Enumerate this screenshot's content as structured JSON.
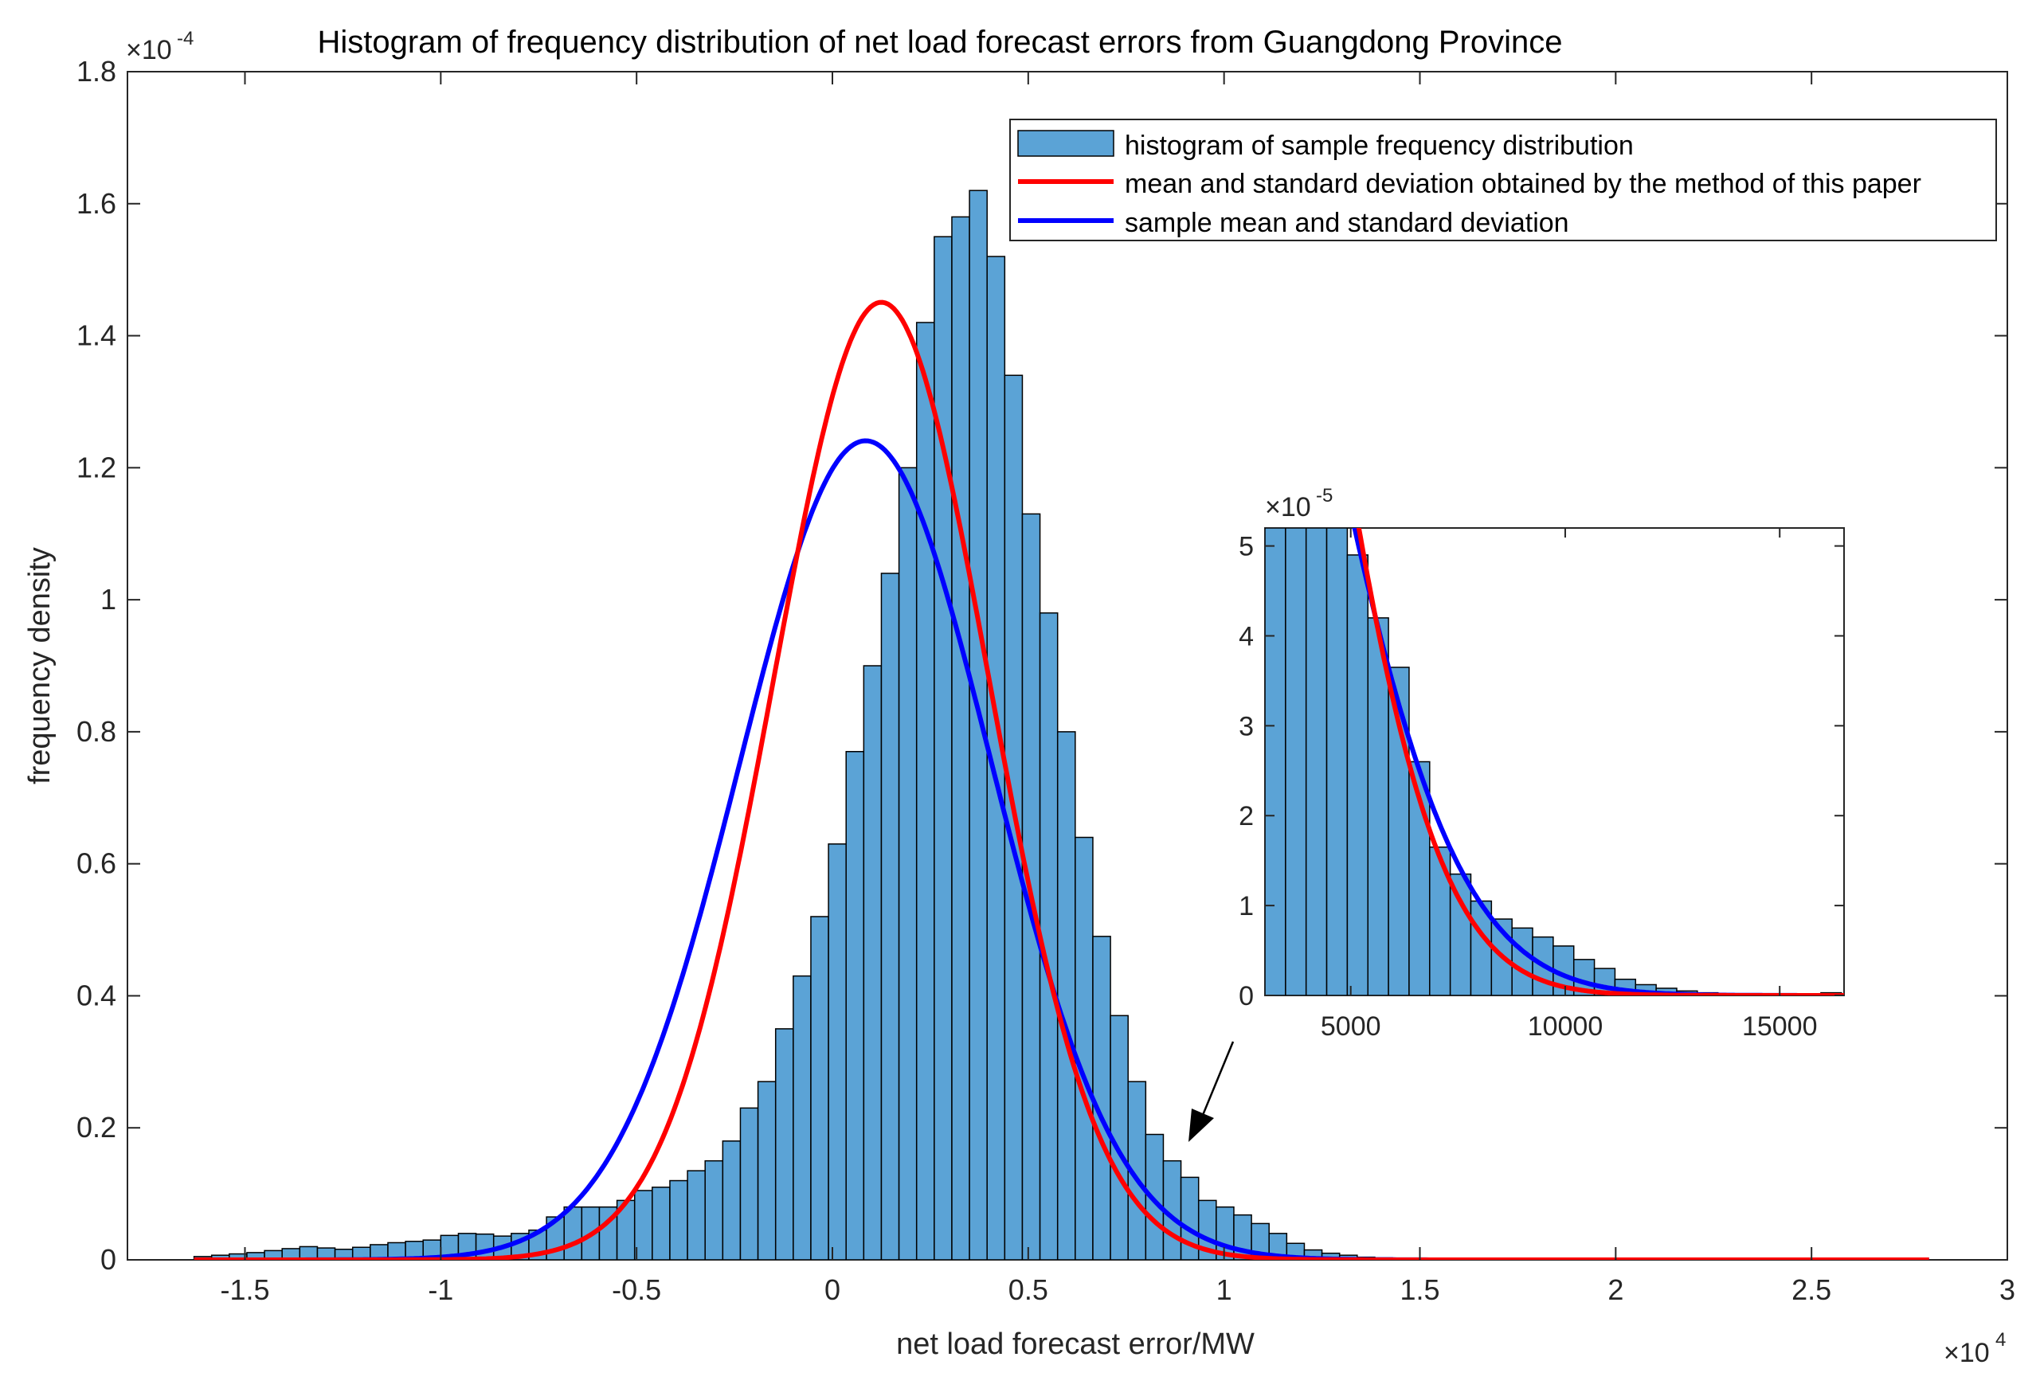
{
  "chart_data": {
    "type": "bar",
    "title": "Histogram of frequency distribution of net load forecast errors from Guangdong Province",
    "xlabel": "net load forecast error/MW",
    "ylabel": "frequency density",
    "x_exponent": {
      "base": "×10",
      "power": "4"
    },
    "y_exponent": {
      "base": "×10",
      "power": "-4"
    },
    "xlim": [
      -18000,
      30000
    ],
    "ylim": [
      0,
      0.00018
    ],
    "xticks": [
      -15000,
      -10000,
      -5000,
      0,
      5000,
      10000,
      15000,
      20000,
      25000,
      30000
    ],
    "xtick_labels": [
      "-1.5",
      "-1",
      "-0.5",
      "0",
      "0.5",
      "1",
      "1.5",
      "2",
      "2.5",
      "3"
    ],
    "yticks": [
      0,
      2e-05,
      4e-05,
      6e-05,
      8e-05,
      0.0001,
      0.00012,
      0.00014,
      0.00016,
      0.00018
    ],
    "ytick_labels": [
      "0",
      "0.2",
      "0.4",
      "0.6",
      "0.8",
      "1",
      "1.2",
      "1.4",
      "1.6",
      "1.8"
    ],
    "grid": false,
    "bin_edges_start": -16300,
    "bin_width": 450,
    "histogram": [
      5e-07,
      7e-07,
      9e-07,
      1.1e-06,
      1.4e-06,
      1.7e-06,
      2e-06,
      1.8e-06,
      1.6e-06,
      1.9e-06,
      2.3e-06,
      2.6e-06,
      2.8e-06,
      3e-06,
      3.7e-06,
      4e-06,
      3.9e-06,
      3.6e-06,
      4e-06,
      4.5e-06,
      6.5e-06,
      8e-06,
      8e-06,
      8e-06,
      9e-06,
      1.05e-05,
      1.1e-05,
      1.2e-05,
      1.35e-05,
      1.5e-05,
      1.8e-05,
      2.3e-05,
      2.7e-05,
      3.5e-05,
      4.3e-05,
      5.2e-05,
      6.3e-05,
      7.7e-05,
      9e-05,
      0.000104,
      0.00012,
      0.000142,
      0.000155,
      0.000158,
      0.000162,
      0.000152,
      0.000134,
      0.000113,
      9.8e-05,
      8e-05,
      6.4e-05,
      4.9e-05,
      3.7e-05,
      2.7e-05,
      1.9e-05,
      1.5e-05,
      1.25e-05,
      9e-06,
      8e-06,
      6.8e-06,
      5.5e-06,
      4e-06,
      2.5e-06,
      1.5e-06,
      1e-06,
      7e-07,
      4e-07,
      3e-07,
      2e-07,
      2e-07,
      1e-07,
      1e-07,
      1e-07,
      1e-07,
      1e-07,
      1e-07,
      1e-07,
      1e-07,
      1e-07,
      1e-07,
      1e-07,
      1e-07,
      1e-07,
      2e-07,
      1e-07,
      1e-07,
      1e-07,
      1e-07,
      1e-07,
      1e-07,
      1e-07,
      1e-07,
      1e-07,
      1e-07,
      1e-07,
      1e-07,
      1e-07,
      1e-07
    ],
    "series": [
      {
        "name": "histogram of sample frequency distribution",
        "kind": "histogram",
        "color": "#5BA3D6"
      },
      {
        "name": "mean and standard deviation obtained by the method of this paper",
        "kind": "normal_pdf",
        "mean": 1250,
        "std": 2750,
        "color": "#FF0000"
      },
      {
        "name": "sample mean and standard deviation",
        "kind": "normal_pdf",
        "mean": 850,
        "std": 3215,
        "color": "#0000FF"
      }
    ],
    "curve_x_range": [
      -16300,
      28000
    ],
    "legend_position": "top-right",
    "inset": {
      "xlim": [
        3000,
        16500
      ],
      "ylim": [
        0,
        5.2e-05
      ],
      "xticks": [
        5000,
        10000,
        15000
      ],
      "xtick_labels": [
        "5000",
        "10000",
        "15000"
      ],
      "yticks": [
        0,
        1e-05,
        2e-05,
        3e-05,
        4e-05,
        5e-05
      ],
      "ytick_labels": [
        "0",
        "1",
        "2",
        "3",
        "4",
        "5"
      ],
      "y_exponent": {
        "base": "×10",
        "power": "-5"
      },
      "bin_edges_start": 3000,
      "bin_width": 480,
      "histogram": [
        5.2e-05,
        5.2e-05,
        5.2e-05,
        5.2e-05,
        4.9e-05,
        4.2e-05,
        3.65e-05,
        2.6e-05,
        1.65e-05,
        1.35e-05,
        1.05e-05,
        8.5e-06,
        7.5e-06,
        6.5e-06,
        5.5e-06,
        4e-06,
        3e-06,
        1.8e-06,
        1.2e-06,
        8e-07,
        5e-07,
        3e-07,
        2e-07,
        1e-07,
        1e-07,
        1e-07,
        1e-07,
        3e-07,
        2e-07,
        1e-07
      ]
    },
    "annotation": "arrow pointing from inset to right tail"
  }
}
